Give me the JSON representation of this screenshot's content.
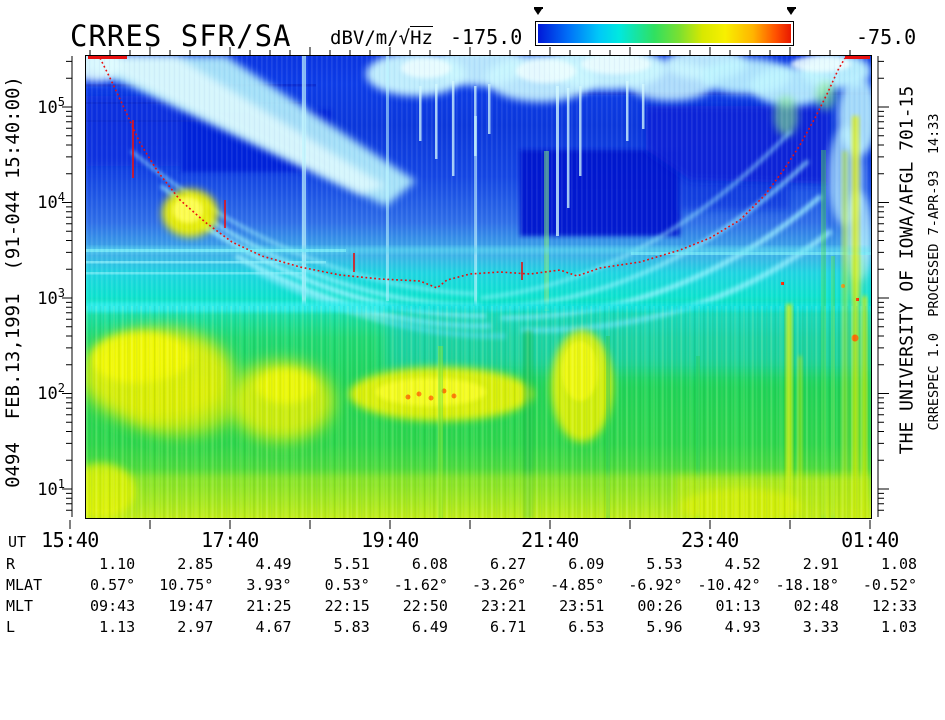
{
  "header": {
    "title": "CRRES SFR/SA",
    "units_prefix": "dBV/m/√",
    "units_radicand": "Hz",
    "colorbar": {
      "min_label": "-175.0",
      "max_label": "-75.0",
      "palette": [
        "#0018d8",
        "#0070f8",
        "#00e8e0",
        "#30e060",
        "#d8e800",
        "#f8f000",
        "#ffb400",
        "#e81800"
      ]
    }
  },
  "left_margin": {
    "orbit_label": "0494  FEB.13,1991  (91-044 15:40:00)"
  },
  "right_margin": {
    "institution": "THE UNIVERSITY OF IOWA/AFGL 701-15",
    "processing": "CRRESPEC 1.0  PROCESSED 7-APR-93  14:33"
  },
  "y_axis": {
    "ticks": [
      {
        "base": "10",
        "exp": "5"
      },
      {
        "base": "10",
        "exp": "4"
      },
      {
        "base": "10",
        "exp": "3"
      },
      {
        "base": "10",
        "exp": "2"
      },
      {
        "base": "10",
        "exp": "1"
      }
    ]
  },
  "x_axis": {
    "name": "UT",
    "labels": [
      "15:40",
      "17:40",
      "19:40",
      "21:40",
      "23:40",
      "01:40"
    ]
  },
  "ephemeris": {
    "rows": [
      {
        "label": "R",
        "values": [
          "1.10",
          "2.85",
          "4.49",
          "5.51",
          "6.08",
          "6.27",
          "6.09",
          "5.53",
          "4.52",
          "2.91",
          "1.08"
        ]
      },
      {
        "label": "MLAT",
        "values": [
          "0.57°",
          "10.75°",
          "3.93°",
          "0.53°",
          "-1.62°",
          "-3.26°",
          "-4.85°",
          "-6.92°",
          "-10.42°",
          "-18.18°",
          "-0.52°"
        ]
      },
      {
        "label": "MLT",
        "values": [
          "09:43",
          "19:47",
          "21:25",
          "22:15",
          "22:50",
          "23:21",
          "23:51",
          "00:26",
          "01:13",
          "02:48",
          "12:33"
        ]
      },
      {
        "label": "L",
        "values": [
          "1.13",
          "2.97",
          "4.67",
          "5.83",
          "6.49",
          "6.71",
          "6.53",
          "5.96",
          "4.93",
          "3.33",
          "1.03"
        ]
      }
    ]
  },
  "chart_data": {
    "type": "heatmap",
    "title": "CRRES SFR/SA",
    "x_axis": {
      "label": "UT",
      "ticks": [
        "15:40",
        "17:40",
        "19:40",
        "21:40",
        "23:40",
        "01:40"
      ],
      "tick_interval": "2 hours",
      "span_hours": 10
    },
    "y_axis": {
      "scale": "log",
      "ticks": [
        10,
        100,
        1000,
        10000,
        100000
      ],
      "units": "Hz"
    },
    "colorbar": {
      "label": "dBV/m/√Hz",
      "min": -175.0,
      "max": -75.0,
      "palette": "rainbow blue→cyan→green→yellow→red"
    },
    "annotations": {
      "orbit": "0494",
      "date": "FEB.13,1991",
      "start_time": "91-044 15:40:00",
      "institution": "THE UNIVERSITY OF IOWA/AFGL 701-15",
      "processing": "CRRESPEC 1.0  PROCESSED 7-APR-93  14:33"
    },
    "overlay_line": {
      "name": "electron cyclotron frequency trace (red dotted)",
      "color": "#e01010",
      "points": [
        {
          "ut": "16:02",
          "hz": 320000
        },
        {
          "ut": "16:21",
          "hz": 93000
        },
        {
          "ut": "16:46",
          "hz": 21000
        },
        {
          "ut": "17:21",
          "hz": 6300
        },
        {
          "ut": "18:04",
          "hz": 2800
        },
        {
          "ut": "19:02",
          "hz": 1750
        },
        {
          "ut": "20:15",
          "hz": 1300
        },
        {
          "ut": "21:25",
          "hz": 1800
        },
        {
          "ut": "22:47",
          "hz": 2400
        },
        {
          "ut": "23:40",
          "hz": 4300
        },
        {
          "ut": "00:21",
          "hz": 12000
        },
        {
          "ut": "00:59",
          "hz": 76000
        },
        {
          "ut": "01:21",
          "hz": 320000
        }
      ]
    },
    "ephemeris": {
      "columns_ut": [
        "15:40",
        "16:40",
        "17:40",
        "18:40",
        "19:40",
        "20:40",
        "21:40",
        "22:40",
        "23:40",
        "00:40",
        "01:40"
      ],
      "R": [
        1.1,
        2.85,
        4.49,
        5.51,
        6.08,
        6.27,
        6.09,
        5.53,
        4.52,
        2.91,
        1.08
      ],
      "MLAT_deg": [
        0.57,
        10.75,
        3.93,
        0.53,
        -1.62,
        -3.26,
        -4.85,
        -6.92,
        -10.42,
        -18.18,
        -0.52
      ],
      "MLT": [
        "09:43",
        "19:47",
        "21:25",
        "22:15",
        "22:50",
        "23:21",
        "23:51",
        "00:26",
        "01:13",
        "02:48",
        "12:33"
      ],
      "L": [
        1.13,
        2.97,
        4.67,
        5.83,
        6.49,
        6.71,
        6.53,
        5.96,
        4.93,
        3.33,
        1.03
      ]
    },
    "features": [
      "intense green/yellow broadband emissions below ~600 Hz through most of the orbit, strongest 15:55-18:10",
      "dark-blue low-intensity region at high frequencies mid-orbit with funnel-shaped cyan banded emissions converging near the fce minimum (~20:15, ~1.3 kHz)",
      "bright cyan/white patches above ~3×10^4 Hz near orbit start and end",
      "narrow yellow vertical bursts near 00:40-01:30 at low frequencies"
    ]
  }
}
